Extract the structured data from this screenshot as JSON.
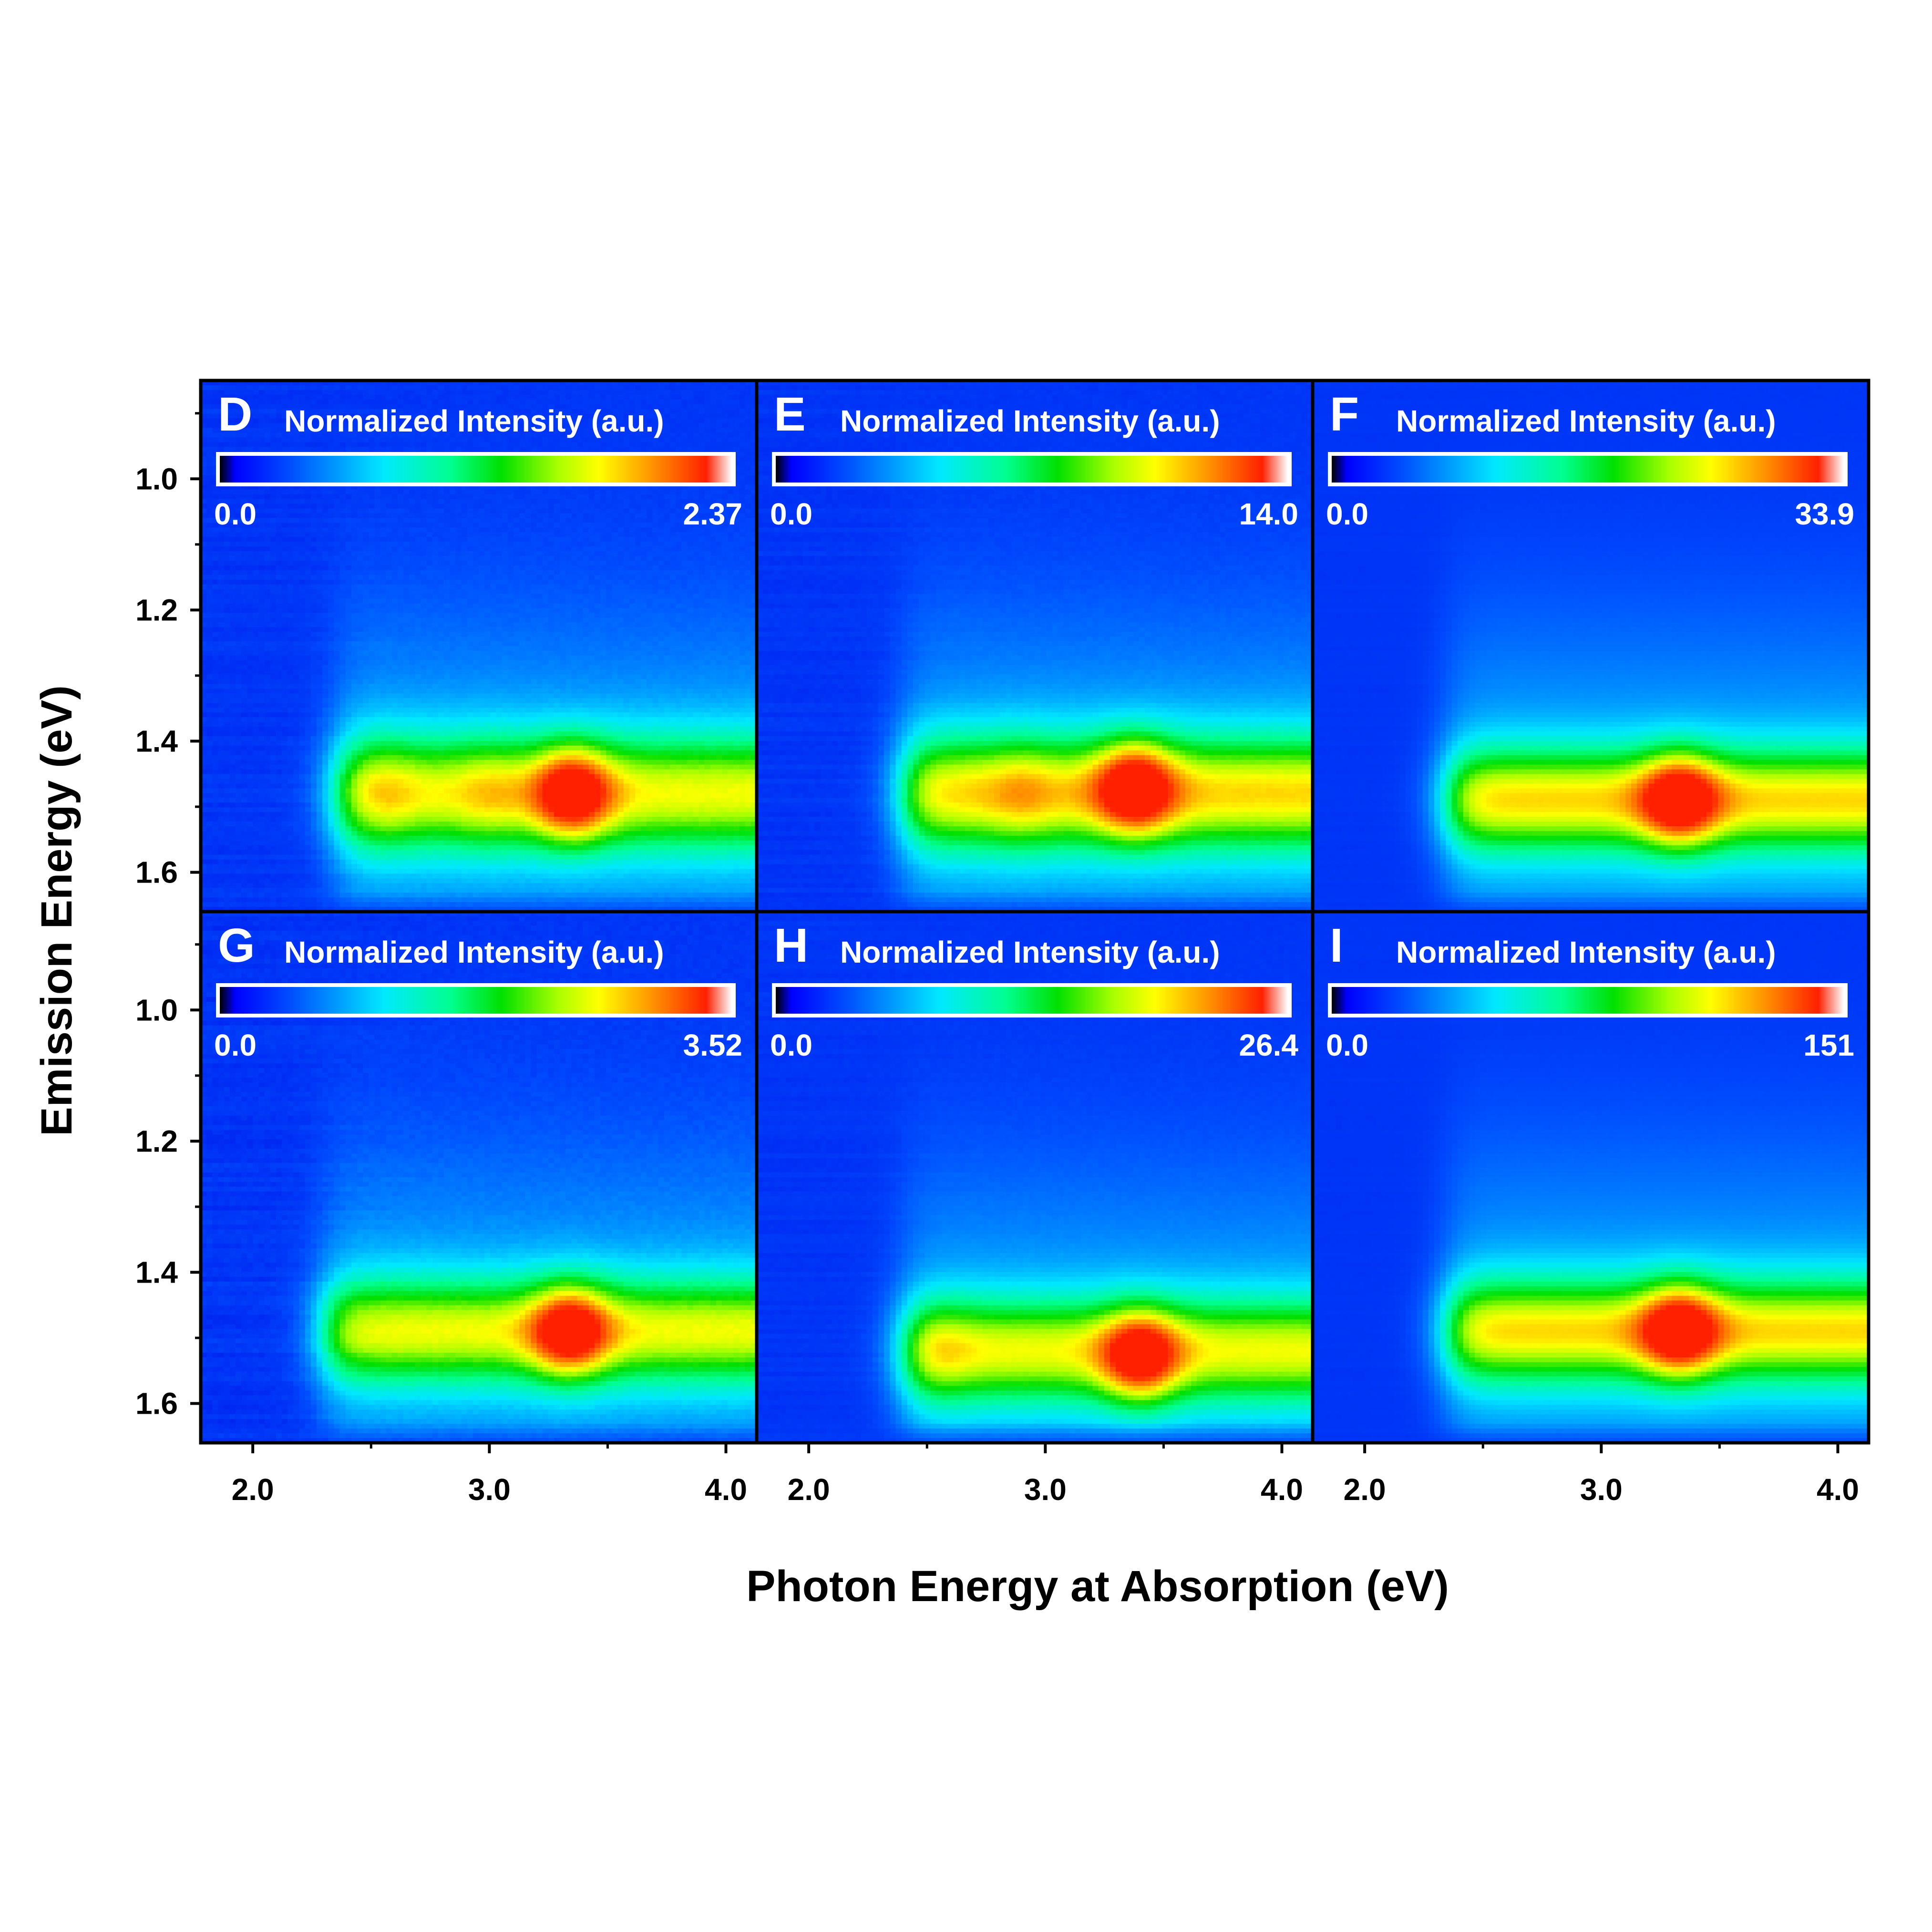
{
  "figure": {
    "xlabel": "Photon Energy at Absorption (eV)",
    "ylabel": "Emission Energy (eV)"
  },
  "colors": {
    "colormap": [
      "#000000",
      "#0000ff",
      "#0050ff",
      "#00e8ff",
      "#00ff90",
      "#00e000",
      "#a8ff00",
      "#ffff00",
      "#ff9800",
      "#ff2000",
      "#ffffff"
    ],
    "background": "#0000f0",
    "frame": "#000000",
    "label_text": "#ffffff"
  },
  "chart_data": [
    {
      "panel": "D",
      "type": "heatmap",
      "colorbar_title": "Normalized Intensity (a.u.)",
      "colorbar_min": "0.0",
      "colorbar_max": "2.37",
      "xlim": [
        1.78,
        4.13
      ],
      "ylim": [
        1.66,
        0.85
      ],
      "xticks": [
        "2.0",
        "3.0",
        "4.0"
      ],
      "yticks": [
        "1.0",
        "1.2",
        "1.4",
        "1.6"
      ],
      "emission_center_eV": 1.48,
      "band_halfwidth_eV": 0.11,
      "band_start_eV": 2.35,
      "hotspot_eV": [
        3.35,
        1.48
      ],
      "hotspot_intensity": 1.0,
      "band_level": 0.55,
      "side_lobes_eV": [
        2.55,
        3.0
      ],
      "noise": 0.25
    },
    {
      "panel": "E",
      "type": "heatmap",
      "colorbar_title": "Normalized Intensity (a.u.)",
      "colorbar_min": "0.0",
      "colorbar_max": "14.0",
      "xlim": [
        1.78,
        4.13
      ],
      "ylim": [
        1.66,
        0.85
      ],
      "xticks": [
        "2.0",
        "3.0",
        "4.0"
      ],
      "yticks": [
        "1.0",
        "1.2",
        "1.4",
        "1.6"
      ],
      "emission_center_eV": 1.48,
      "band_halfwidth_eV": 0.11,
      "band_start_eV": 2.4,
      "hotspot_eV": [
        3.38,
        1.47
      ],
      "hotspot_intensity": 1.0,
      "band_level": 0.6,
      "side_lobes_eV": [
        2.9
      ],
      "noise": 0.2
    },
    {
      "panel": "F",
      "type": "heatmap",
      "colorbar_title": "Normalized Intensity (a.u.)",
      "colorbar_min": "0.0",
      "colorbar_max": "33.9",
      "xlim": [
        1.78,
        4.13
      ],
      "ylim": [
        1.66,
        0.85
      ],
      "xticks": [
        "2.0",
        "3.0",
        "4.0"
      ],
      "yticks": [
        "1.0",
        "1.2",
        "1.4",
        "1.6"
      ],
      "emission_center_eV": 1.49,
      "band_halfwidth_eV": 0.1,
      "band_start_eV": 2.35,
      "hotspot_eV": [
        3.33,
        1.49
      ],
      "hotspot_intensity": 1.0,
      "band_level": 0.6,
      "side_lobes_eV": [],
      "noise": 0.05
    },
    {
      "panel": "G",
      "type": "heatmap",
      "colorbar_title": "Normalized Intensity (a.u.)",
      "colorbar_min": "0.0",
      "colorbar_max": "3.52",
      "xlim": [
        1.78,
        4.13
      ],
      "ylim": [
        1.66,
        0.85
      ],
      "xticks": [
        "2.0",
        "3.0",
        "4.0"
      ],
      "yticks": [
        "1.0",
        "1.2",
        "1.4",
        "1.6"
      ],
      "emission_center_eV": 1.49,
      "band_halfwidth_eV": 0.1,
      "band_start_eV": 2.3,
      "hotspot_eV": [
        3.34,
        1.49
      ],
      "hotspot_intensity": 1.0,
      "band_level": 0.55,
      "side_lobes_eV": [],
      "noise": 0.3
    },
    {
      "panel": "H",
      "type": "heatmap",
      "colorbar_title": "Normalized Intensity (a.u.)",
      "colorbar_min": "0.0",
      "colorbar_max": "26.4",
      "xlim": [
        1.78,
        4.13
      ],
      "ylim": [
        1.66,
        0.85
      ],
      "xticks": [
        "2.0",
        "3.0",
        "4.0"
      ],
      "yticks": [
        "1.0",
        "1.2",
        "1.4",
        "1.6"
      ],
      "emission_center_eV": 1.52,
      "band_halfwidth_eV": 0.1,
      "band_start_eV": 2.4,
      "hotspot_eV": [
        3.4,
        1.53
      ],
      "hotspot_intensity": 1.0,
      "band_level": 0.55,
      "side_lobes_eV": [
        2.55
      ],
      "noise": 0.15
    },
    {
      "panel": "I",
      "type": "heatmap",
      "colorbar_title": "Normalized Intensity (a.u.)",
      "colorbar_min": "0.0",
      "colorbar_max": "151",
      "xlim": [
        1.78,
        4.13
      ],
      "ylim": [
        1.66,
        0.85
      ],
      "xticks": [
        "2.0",
        "3.0",
        "4.0"
      ],
      "yticks": [
        "1.0",
        "1.2",
        "1.4",
        "1.6"
      ],
      "emission_center_eV": 1.49,
      "band_halfwidth_eV": 0.1,
      "band_start_eV": 2.35,
      "hotspot_eV": [
        3.33,
        1.49
      ],
      "hotspot_intensity": 1.0,
      "band_level": 0.6,
      "side_lobes_eV": [],
      "noise": 0.05
    }
  ]
}
